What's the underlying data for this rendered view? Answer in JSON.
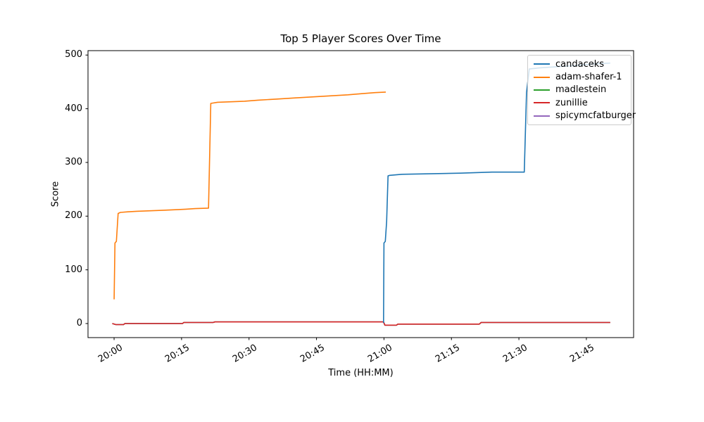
{
  "chart_data": {
    "type": "line",
    "title": "Top 5 Player Scores Over Time",
    "xlabel": "Time (HH:MM)",
    "ylabel": "Score",
    "x_unit": "minutes after 20:00",
    "xlim": [
      -5.8,
      115.5
    ],
    "ylim": [
      -26.2,
      508.2
    ],
    "grid": false,
    "legend_position": "upper right",
    "x_ticks": [
      {
        "m": 0,
        "label": "20:00"
      },
      {
        "m": 15,
        "label": "20:15"
      },
      {
        "m": 30,
        "label": "20:30"
      },
      {
        "m": 45,
        "label": "20:45"
      },
      {
        "m": 60,
        "label": "21:00"
      },
      {
        "m": 75,
        "label": "21:15"
      },
      {
        "m": 90,
        "label": "21:30"
      },
      {
        "m": 105,
        "label": "21:45"
      }
    ],
    "y_ticks": [
      0,
      100,
      200,
      300,
      400,
      500
    ],
    "series": [
      {
        "name": "candaceks",
        "color": "#1f77b4",
        "zorder": 3,
        "points": [
          [
            59.9,
            1
          ],
          [
            60.0,
            150
          ],
          [
            60.3,
            153
          ],
          [
            60.6,
            190
          ],
          [
            60.9,
            275
          ],
          [
            61.3,
            276
          ],
          [
            64,
            278
          ],
          [
            77,
            280
          ],
          [
            84,
            282
          ],
          [
            91.2,
            282
          ],
          [
            91.7,
            430
          ],
          [
            92.3,
            474
          ],
          [
            94.5,
            476
          ],
          [
            98,
            478
          ],
          [
            102,
            480
          ],
          [
            106,
            483
          ],
          [
            110.3,
            485
          ]
        ]
      },
      {
        "name": "adam-shafer-1",
        "color": "#ff7f0e",
        "zorder": 3,
        "points": [
          [
            0,
            45
          ],
          [
            0.2,
            150
          ],
          [
            0.5,
            153
          ],
          [
            0.9,
            205
          ],
          [
            1.4,
            207
          ],
          [
            3,
            208
          ],
          [
            5,
            209
          ],
          [
            8,
            210
          ],
          [
            11,
            211
          ],
          [
            14,
            212
          ],
          [
            16,
            213
          ],
          [
            18,
            214
          ],
          [
            21,
            215
          ],
          [
            21.5,
            410
          ],
          [
            23,
            412
          ],
          [
            26,
            413
          ],
          [
            29,
            414
          ],
          [
            32,
            416
          ],
          [
            36,
            418
          ],
          [
            40,
            420
          ],
          [
            44,
            422
          ],
          [
            48,
            424
          ],
          [
            52,
            426
          ],
          [
            55,
            428
          ],
          [
            58,
            430
          ],
          [
            60.4,
            431
          ]
        ]
      },
      {
        "name": "madlestein",
        "color": "#2ca02c",
        "zorder": 1,
        "note": "hidden beneath zunillie line (overlapping near-zero values)",
        "points": [
          [
            -0.4,
            0
          ],
          [
            0.4,
            -2
          ],
          [
            2.1,
            -2
          ],
          [
            2.4,
            0
          ],
          [
            15.2,
            0
          ],
          [
            15.5,
            2
          ],
          [
            22,
            2
          ],
          [
            22.4,
            3
          ],
          [
            59.9,
            3
          ],
          [
            60.2,
            -3
          ],
          [
            62.8,
            -3
          ],
          [
            63.1,
            -1
          ],
          [
            81.2,
            -1
          ],
          [
            81.6,
            2
          ],
          [
            110.3,
            2
          ]
        ]
      },
      {
        "name": "zunillie",
        "color": "#d62728",
        "zorder": 2,
        "points": [
          [
            -0.4,
            0
          ],
          [
            0.4,
            -2
          ],
          [
            2.1,
            -2
          ],
          [
            2.4,
            0
          ],
          [
            15.2,
            0
          ],
          [
            15.5,
            2
          ],
          [
            22,
            2
          ],
          [
            22.4,
            3
          ],
          [
            59.9,
            3
          ],
          [
            60.2,
            -3
          ],
          [
            62.8,
            -3
          ],
          [
            63.1,
            -1
          ],
          [
            81.2,
            -1
          ],
          [
            81.6,
            2
          ],
          [
            110.3,
            2
          ]
        ]
      },
      {
        "name": "spicymcfatburger",
        "color": "#9467bd",
        "zorder": 1,
        "note": "hidden beneath zunillie line (overlapping near-zero values)",
        "points": [
          [
            -0.4,
            0
          ],
          [
            0.4,
            -2
          ],
          [
            2.1,
            -2
          ],
          [
            2.4,
            0
          ],
          [
            15.2,
            0
          ],
          [
            15.5,
            2
          ],
          [
            22,
            2
          ],
          [
            22.4,
            3
          ],
          [
            59.9,
            3
          ],
          [
            60.2,
            -3
          ],
          [
            62.8,
            -3
          ],
          [
            63.1,
            -1
          ],
          [
            81.2,
            -1
          ],
          [
            81.6,
            2
          ],
          [
            110.3,
            2
          ]
        ]
      }
    ],
    "style": {
      "background": "#ffffff",
      "spine_color": "#000000",
      "legend_border": "#cccccc",
      "legend_background": "rgba(255,255,255,0.8)",
      "line_width": 1.6
    }
  }
}
